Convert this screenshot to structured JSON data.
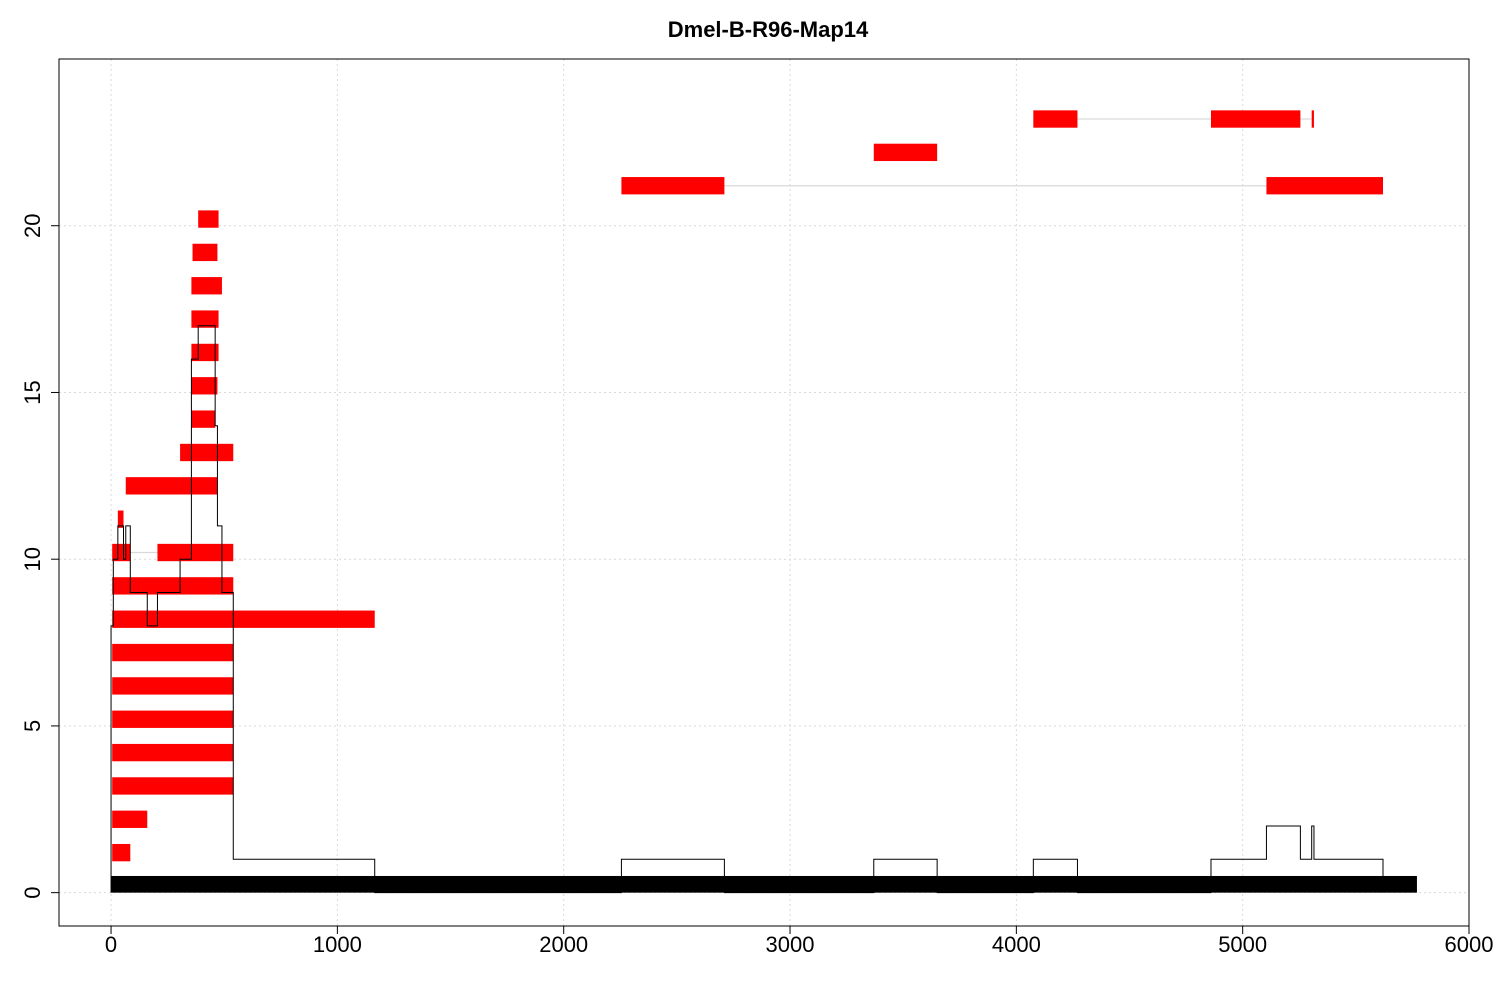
{
  "chart_data": {
    "type": "feature-map",
    "title": "Dmel-B-R96-Map14",
    "xlabel": "",
    "ylabel": "",
    "xlim": [
      -230,
      6000
    ],
    "ylim": [
      -1,
      25
    ],
    "x_ticks": [
      0,
      1000,
      2000,
      3000,
      4000,
      5000,
      6000
    ],
    "y_ticks": [
      0,
      5,
      10,
      15,
      20
    ],
    "grid": true,
    "colors": {
      "reads": "#ff0000",
      "coverage": "#000000",
      "reference": "#000000",
      "connector": "#d9d9d9"
    },
    "reference_bar": {
      "x": [
        0,
        5770
      ],
      "y": 0
    },
    "reads": [
      {
        "y": 1.2,
        "segments": [
          [
            5,
            85
          ]
        ]
      },
      {
        "y": 2.2,
        "segments": [
          [
            5,
            160
          ]
        ]
      },
      {
        "y": 3.2,
        "segments": [
          [
            5,
            540
          ]
        ]
      },
      {
        "y": 4.2,
        "segments": [
          [
            5,
            540
          ]
        ]
      },
      {
        "y": 5.2,
        "segments": [
          [
            5,
            540
          ]
        ]
      },
      {
        "y": 6.2,
        "segments": [
          [
            5,
            540
          ]
        ]
      },
      {
        "y": 7.2,
        "segments": [
          [
            5,
            540
          ]
        ]
      },
      {
        "y": 8.2,
        "segments": [
          [
            5,
            1165
          ]
        ]
      },
      {
        "y": 9.2,
        "segments": [
          [
            5,
            540
          ]
        ]
      },
      {
        "y": 10.2,
        "segments": [
          [
            5,
            85
          ],
          [
            205,
            540
          ]
        ]
      },
      {
        "y": 11.2,
        "segments": [
          [
            30,
            55
          ]
        ]
      },
      {
        "y": 12.2,
        "segments": [
          [
            65,
            470
          ]
        ]
      },
      {
        "y": 13.2,
        "segments": [
          [
            305,
            540
          ]
        ]
      },
      {
        "y": 14.2,
        "segments": [
          [
            355,
            460
          ]
        ]
      },
      {
        "y": 15.2,
        "segments": [
          [
            355,
            470
          ]
        ]
      },
      {
        "y": 16.2,
        "segments": [
          [
            355,
            475
          ]
        ]
      },
      {
        "y": 17.2,
        "segments": [
          [
            355,
            475
          ]
        ]
      },
      {
        "y": 18.2,
        "segments": [
          [
            355,
            490
          ]
        ]
      },
      {
        "y": 19.2,
        "segments": [
          [
            360,
            470
          ]
        ]
      },
      {
        "y": 20.2,
        "segments": [
          [
            385,
            475
          ]
        ]
      },
      {
        "y": 21.2,
        "segments": [
          [
            2255,
            2710
          ],
          [
            5105,
            5620
          ]
        ]
      },
      {
        "y": 22.2,
        "segments": [
          [
            3370,
            3650
          ]
        ]
      },
      {
        "y": 23.2,
        "segments": [
          [
            4075,
            4270
          ],
          [
            4860,
            5255
          ],
          [
            5305,
            5315
          ]
        ]
      }
    ],
    "coverage": [
      [
        0,
        0
      ],
      [
        0,
        8
      ],
      [
        10,
        8
      ],
      [
        10,
        10
      ],
      [
        30,
        10
      ],
      [
        30,
        11
      ],
      [
        55,
        11
      ],
      [
        55,
        10
      ],
      [
        65,
        10
      ],
      [
        65,
        11
      ],
      [
        85,
        11
      ],
      [
        85,
        9
      ],
      [
        160,
        9
      ],
      [
        160,
        8
      ],
      [
        205,
        8
      ],
      [
        205,
        9
      ],
      [
        305,
        9
      ],
      [
        305,
        10
      ],
      [
        355,
        10
      ],
      [
        355,
        16
      ],
      [
        385,
        16
      ],
      [
        385,
        17
      ],
      [
        460,
        17
      ],
      [
        460,
        14
      ],
      [
        470,
        14
      ],
      [
        470,
        11
      ],
      [
        490,
        11
      ],
      [
        490,
        9
      ],
      [
        540,
        9
      ],
      [
        540,
        1
      ],
      [
        1165,
        1
      ],
      [
        1165,
        0
      ],
      [
        2255,
        0
      ],
      [
        2255,
        1
      ],
      [
        2710,
        1
      ],
      [
        2710,
        0
      ],
      [
        3370,
        0
      ],
      [
        3370,
        1
      ],
      [
        3650,
        1
      ],
      [
        3650,
        0
      ],
      [
        4075,
        0
      ],
      [
        4075,
        1
      ],
      [
        4270,
        1
      ],
      [
        4270,
        0
      ],
      [
        4860,
        0
      ],
      [
        4860,
        1
      ],
      [
        5105,
        1
      ],
      [
        5105,
        2
      ],
      [
        5255,
        2
      ],
      [
        5255,
        1
      ],
      [
        5305,
        1
      ],
      [
        5305,
        2
      ],
      [
        5315,
        2
      ],
      [
        5315,
        1
      ],
      [
        5620,
        1
      ],
      [
        5620,
        0
      ]
    ]
  }
}
